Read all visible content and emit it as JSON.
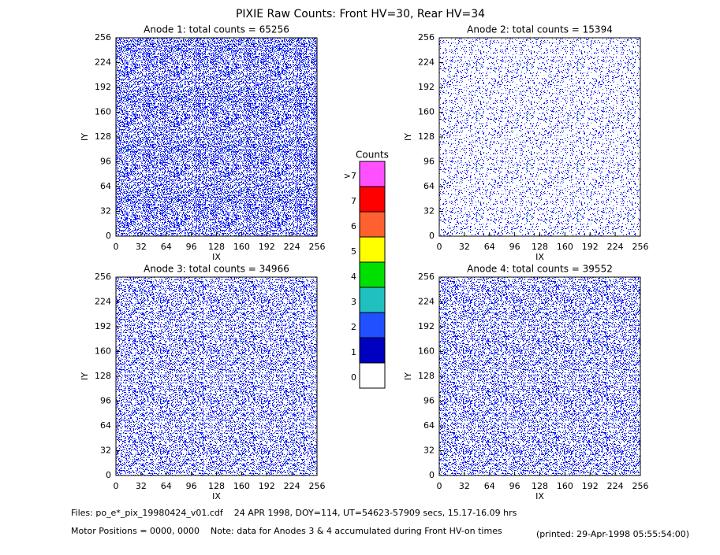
{
  "title": "PIXIE Raw Counts:  Front HV=30, Rear HV=34",
  "chart_data": [
    {
      "type": "heatmap",
      "title": "Anode 1: total counts = 65256",
      "xlabel": "IX",
      "ylabel": "IY",
      "xlim": [
        0,
        256
      ],
      "ylim": [
        0,
        256
      ],
      "xticks": [
        0,
        32,
        64,
        96,
        128,
        160,
        192,
        224,
        256
      ],
      "yticks": [
        0,
        32,
        64,
        96,
        128,
        160,
        192,
        224,
        256
      ]
    },
    {
      "type": "heatmap",
      "title": "Anode 2: total counts = 15394",
      "xlabel": "IX",
      "ylabel": "IY",
      "xlim": [
        0,
        256
      ],
      "ylim": [
        0,
        256
      ],
      "xticks": [
        0,
        32,
        64,
        96,
        128,
        160,
        192,
        224,
        256
      ],
      "yticks": [
        0,
        32,
        64,
        96,
        128,
        160,
        192,
        224,
        256
      ]
    },
    {
      "type": "heatmap",
      "title": "Anode 3: total counts = 34966",
      "xlabel": "IX",
      "ylabel": "IY",
      "xlim": [
        0,
        256
      ],
      "ylim": [
        0,
        256
      ],
      "xticks": [
        0,
        32,
        64,
        96,
        128,
        160,
        192,
        224,
        256
      ],
      "yticks": [
        0,
        32,
        64,
        96,
        128,
        160,
        192,
        224,
        256
      ]
    },
    {
      "type": "heatmap",
      "title": "Anode 4: total counts = 39552",
      "xlabel": "IX",
      "ylabel": "IY",
      "xlim": [
        0,
        256
      ],
      "ylim": [
        0,
        256
      ],
      "xticks": [
        0,
        32,
        64,
        96,
        128,
        160,
        192,
        224,
        256
      ],
      "yticks": [
        0,
        32,
        64,
        96,
        128,
        160,
        192,
        224,
        256
      ]
    }
  ],
  "colorbar": {
    "title": "Counts",
    "labels": [
      0,
      1,
      2,
      3,
      4,
      5,
      6,
      7,
      ">7"
    ],
    "colors": [
      "#ffffff",
      "#0000c0",
      "#2050ff",
      "#20c0c0",
      "#00e000",
      "#ffff00",
      "#ff6030",
      "#ff0000",
      "#ff50ff"
    ]
  },
  "footer": {
    "files": "Files: po_e*_pix_19980424_v01.cdf    24 APR 1998, DOY=114, UT=54623-57909 secs, 15.17-16.09 hrs",
    "motor": "Motor Positions = 0000, 0000    Note: data for Anodes 3 & 4 accumulated during Front HV-on times",
    "printed": "(printed: 29-Apr-1998 05:55:54:00)"
  }
}
